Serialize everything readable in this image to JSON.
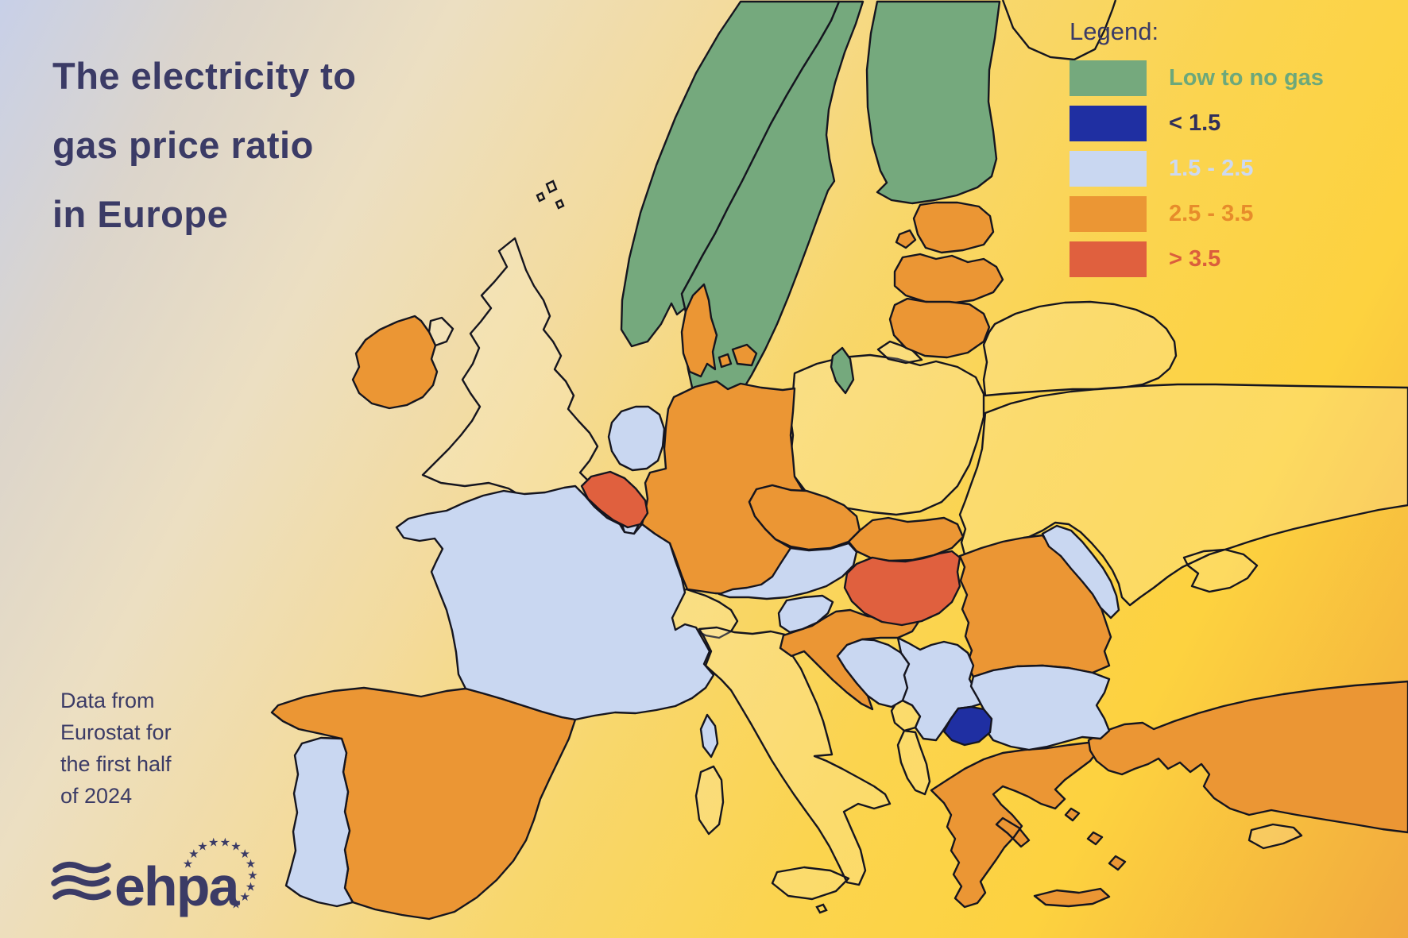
{
  "title": {
    "lines": [
      "The electricity to",
      "gas price ratio",
      "in Europe"
    ],
    "color": "#3B3B66"
  },
  "source": {
    "lines": [
      "Data from",
      "Eurostat for",
      "the first half",
      "of 2024"
    ]
  },
  "legend": {
    "title": "Legend:",
    "items": [
      {
        "label": "Low to no gas",
        "category": "low_no_gas",
        "color": "#75A97D",
        "label_color": "#6CA87B"
      },
      {
        "label": "< 1.5",
        "category": "lt_1_5",
        "color": "#1F2FA2",
        "label_color": "#302F5B"
      },
      {
        "label": "1.5 - 2.5",
        "category": "r_1_5_2_5",
        "color": "#C9D7F1",
        "label_color": "#CDD9F2"
      },
      {
        "label": "2.5 - 3.5",
        "category": "r_2_5_3_5",
        "color": "#EB9634",
        "label_color": "#E78C2B"
      },
      {
        "label": "> 3.5",
        "category": "gt_3_5",
        "color": "#E0603E",
        "label_color": "#DB5E3C"
      }
    ]
  },
  "logo": {
    "text": "ehpa",
    "color": "#3B3B66"
  },
  "map": {
    "outline_color": "#15151F",
    "no_data_fill": "rgba(255,250,228,0.20)",
    "countries": [
      {
        "id": "united_kingdom",
        "name": "United Kingdom",
        "category": "no_data"
      },
      {
        "id": "switzerland",
        "name": "Switzerland",
        "category": "no_data"
      },
      {
        "id": "italy",
        "name": "Italy",
        "category": "no_data"
      },
      {
        "id": "poland",
        "name": "Poland",
        "category": "no_data"
      },
      {
        "id": "belarus",
        "name": "Belarus",
        "category": "no_data"
      },
      {
        "id": "ukraine",
        "name": "Ukraine",
        "category": "no_data"
      },
      {
        "id": "russia_kaliningrad",
        "name": "Russia (Kaliningrad)",
        "category": "no_data"
      },
      {
        "id": "montenegro",
        "name": "Montenegro",
        "category": "no_data"
      },
      {
        "id": "albania",
        "name": "Albania",
        "category": "no_data"
      },
      {
        "id": "cyprus",
        "name": "Cyprus",
        "category": "no_data"
      },
      {
        "id": "norway",
        "name": "Norway",
        "category": "low_no_gas"
      },
      {
        "id": "sweden",
        "name": "Sweden",
        "category": "low_no_gas"
      },
      {
        "id": "finland",
        "name": "Finland",
        "category": "low_no_gas"
      },
      {
        "id": "ireland",
        "name": "Ireland",
        "category": "r_2_5_3_5"
      },
      {
        "id": "denmark",
        "name": "Denmark",
        "category": "r_2_5_3_5"
      },
      {
        "id": "estonia",
        "name": "Estonia",
        "category": "r_2_5_3_5"
      },
      {
        "id": "latvia",
        "name": "Latvia",
        "category": "r_2_5_3_5"
      },
      {
        "id": "lithuania",
        "name": "Lithuania",
        "category": "r_2_5_3_5"
      },
      {
        "id": "germany",
        "name": "Germany",
        "category": "r_2_5_3_5"
      },
      {
        "id": "czechia",
        "name": "Czechia",
        "category": "r_2_5_3_5"
      },
      {
        "id": "slovakia",
        "name": "Slovakia",
        "category": "r_2_5_3_5"
      },
      {
        "id": "croatia",
        "name": "Croatia",
        "category": "r_2_5_3_5"
      },
      {
        "id": "romania",
        "name": "Romania",
        "category": "r_2_5_3_5"
      },
      {
        "id": "greece",
        "name": "Greece",
        "category": "r_2_5_3_5"
      },
      {
        "id": "turkey",
        "name": "Turkey",
        "category": "r_2_5_3_5"
      },
      {
        "id": "spain",
        "name": "Spain",
        "category": "r_2_5_3_5"
      },
      {
        "id": "netherlands",
        "name": "Netherlands",
        "category": "r_1_5_2_5"
      },
      {
        "id": "luxembourg",
        "name": "Luxembourg",
        "category": "r_1_5_2_5"
      },
      {
        "id": "france",
        "name": "France",
        "category": "r_1_5_2_5"
      },
      {
        "id": "portugal",
        "name": "Portugal",
        "category": "r_1_5_2_5"
      },
      {
        "id": "austria",
        "name": "Austria",
        "category": "r_1_5_2_5"
      },
      {
        "id": "slovenia",
        "name": "Slovenia",
        "category": "r_1_5_2_5"
      },
      {
        "id": "bosnia_and_herzegovina",
        "name": "Bosnia and Herzegovina",
        "category": "r_1_5_2_5"
      },
      {
        "id": "serbia",
        "name": "Serbia",
        "category": "r_1_5_2_5"
      },
      {
        "id": "bulgaria",
        "name": "Bulgaria",
        "category": "r_1_5_2_5"
      },
      {
        "id": "moldova",
        "name": "Moldova",
        "category": "r_1_5_2_5"
      },
      {
        "id": "belgium",
        "name": "Belgium",
        "category": "gt_3_5"
      },
      {
        "id": "hungary",
        "name": "Hungary",
        "category": "gt_3_5"
      },
      {
        "id": "north_macedonia",
        "name": "North Macedonia",
        "category": "lt_1_5"
      }
    ]
  },
  "chart_data": {
    "type": "choropleth_map",
    "title": "The electricity to gas price ratio in Europe",
    "legend_position": "top-right",
    "categories": [
      "Low to no gas",
      "< 1.5",
      "1.5 - 2.5",
      "2.5 - 3.5",
      "> 3.5"
    ],
    "series": [
      {
        "name": "Low to no gas",
        "values": [
          "Norway",
          "Sweden",
          "Finland"
        ]
      },
      {
        "name": "< 1.5",
        "values": [
          "North Macedonia"
        ]
      },
      {
        "name": "1.5 - 2.5",
        "values": [
          "France",
          "Netherlands",
          "Luxembourg",
          "Portugal",
          "Austria",
          "Slovenia",
          "Bosnia and Herzegovina",
          "Serbia",
          "Bulgaria",
          "Moldova"
        ]
      },
      {
        "name": "2.5 - 3.5",
        "values": [
          "Ireland",
          "Spain",
          "Germany",
          "Denmark",
          "Czechia",
          "Slovakia",
          "Croatia",
          "Romania",
          "Greece",
          "Turkey",
          "Estonia",
          "Latvia",
          "Lithuania"
        ]
      },
      {
        "name": "> 3.5",
        "values": [
          "Belgium",
          "Hungary"
        ]
      }
    ],
    "no_data": [
      "United Kingdom",
      "Switzerland",
      "Italy",
      "Poland",
      "Belarus",
      "Ukraine",
      "Albania",
      "Montenegro",
      "Cyprus"
    ]
  }
}
